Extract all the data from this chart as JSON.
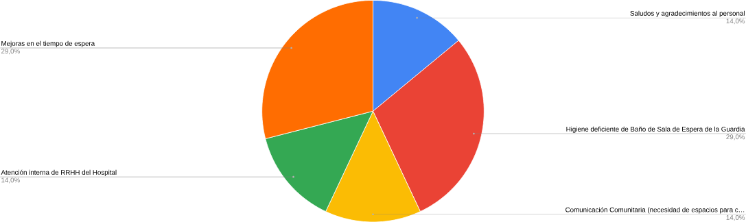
{
  "chart_data": {
    "type": "pie",
    "categories": [
      "Saludos y agradecimientos al personal",
      "Higiene deficiente de Baño de Sala de Espera de la Guardia",
      "Comunicación Comunitaria (necesidad de espacios para c…",
      "Atención interna de RRHH del Hospital",
      "Mejoras en el tiempo de espera"
    ],
    "values": [
      14,
      29,
      14,
      14,
      29
    ],
    "colors": [
      "#4285f4",
      "#ea4335",
      "#fbbc04",
      "#34a853",
      "#ff6d01"
    ],
    "value_labels": [
      "14,0%",
      "29,0%",
      "14,0%",
      "14,0%",
      "29,0%"
    ]
  }
}
